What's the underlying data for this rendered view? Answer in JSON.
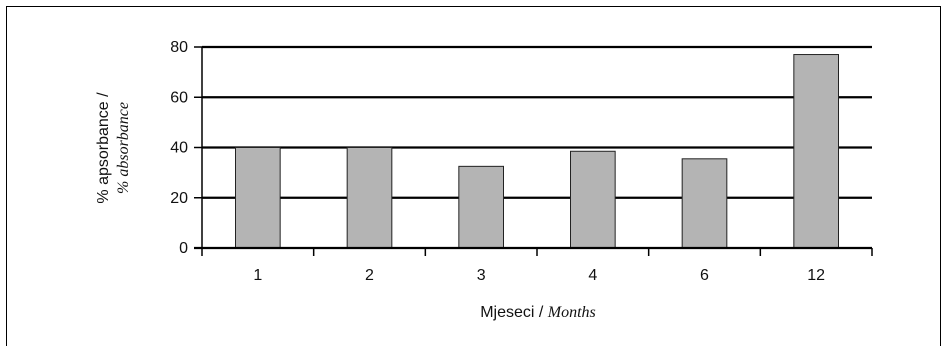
{
  "chart_data": {
    "type": "bar",
    "categories": [
      "1",
      "2",
      "3",
      "4",
      "6",
      "12"
    ],
    "values": [
      40,
      40,
      32.5,
      38.5,
      35.5,
      77
    ],
    "ylim": [
      0,
      80
    ],
    "yticks": [
      0,
      20,
      40,
      60,
      80
    ],
    "grid": true,
    "bar_color": "#b4b4b4",
    "xlabel": {
      "plain": "Mjeseci / ",
      "italic": "Months"
    },
    "ylabel": {
      "line1": "% apsorbance /",
      "line2": "% absorbance"
    }
  }
}
